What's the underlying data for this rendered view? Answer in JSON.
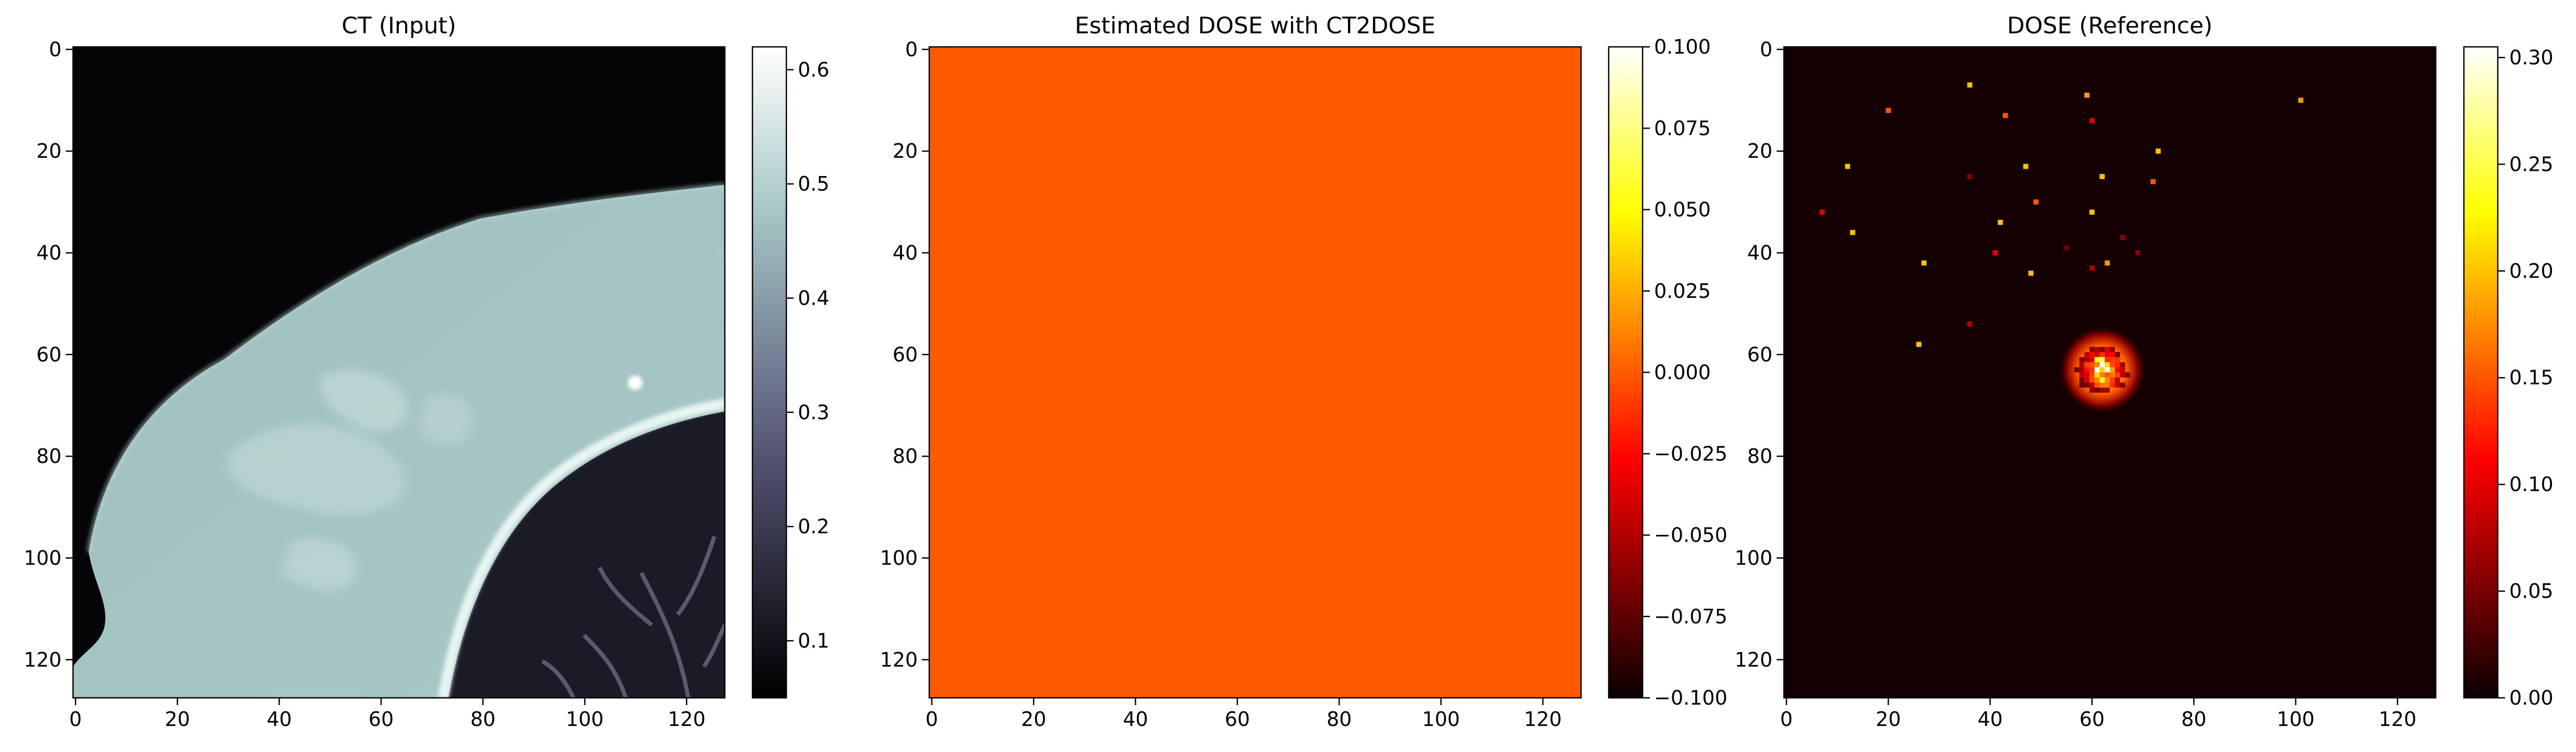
{
  "chart_data": [
    {
      "type": "heatmap",
      "title": "CT (Input)",
      "colormap": "bone",
      "xlim": [
        0,
        127
      ],
      "ylim": [
        127,
        0
      ],
      "x_ticks": [
        "0",
        "20",
        "40",
        "60",
        "80",
        "100",
        "120"
      ],
      "y_ticks": [
        "0",
        "20",
        "40",
        "60",
        "80",
        "100",
        "120"
      ],
      "colorbar": {
        "range": [
          0.05,
          0.62
        ],
        "ticks": [
          "0.1",
          "0.2",
          "0.3",
          "0.4",
          "0.5",
          "0.6"
        ]
      },
      "content": "breast tissue and chest wall with lung region"
    },
    {
      "type": "heatmap",
      "title": "Estimated DOSE with CT2DOSE",
      "colormap": "hot",
      "uniform_value": 0.0,
      "fill_color": "#ff5a00",
      "xlim": [
        0,
        127
      ],
      "ylim": [
        127,
        0
      ],
      "x_ticks": [
        "0",
        "20",
        "40",
        "60",
        "80",
        "100",
        "120"
      ],
      "y_ticks": [
        "0",
        "20",
        "40",
        "60",
        "80",
        "100",
        "120"
      ],
      "colorbar": {
        "range": [
          -0.1,
          0.1
        ],
        "ticks": [
          "0.100",
          "0.075",
          "0.050",
          "0.025",
          "0.000",
          "−0.025",
          "−0.050",
          "−0.075",
          "−0.100"
        ]
      }
    },
    {
      "type": "heatmap",
      "title": "DOSE (Reference)",
      "colormap": "hot",
      "xlim": [
        0,
        127
      ],
      "ylim": [
        127,
        0
      ],
      "x_ticks": [
        "0",
        "20",
        "40",
        "60",
        "80",
        "100",
        "120"
      ],
      "y_ticks": [
        "0",
        "20",
        "40",
        "60",
        "80",
        "100",
        "120"
      ],
      "colorbar": {
        "range": [
          0.0,
          0.305
        ],
        "ticks": [
          "0.00",
          "0.05",
          "0.10",
          "0.15",
          "0.20",
          "0.25",
          "0.30"
        ]
      },
      "hotspot": {
        "x": 62,
        "y": 63,
        "peak": 0.3
      },
      "scatter_points": [
        {
          "x": 36,
          "y": 7,
          "v": 0.2
        },
        {
          "x": 59,
          "y": 9,
          "v": 0.18
        },
        {
          "x": 101,
          "y": 10,
          "v": 0.18
        },
        {
          "x": 20,
          "y": 12,
          "v": 0.15
        },
        {
          "x": 43,
          "y": 13,
          "v": 0.15
        },
        {
          "x": 60,
          "y": 14,
          "v": 0.1
        },
        {
          "x": 73,
          "y": 20,
          "v": 0.2
        },
        {
          "x": 12,
          "y": 23,
          "v": 0.2
        },
        {
          "x": 47,
          "y": 23,
          "v": 0.2
        },
        {
          "x": 36,
          "y": 25,
          "v": 0.06
        },
        {
          "x": 62,
          "y": 25,
          "v": 0.2
        },
        {
          "x": 72,
          "y": 26,
          "v": 0.15
        },
        {
          "x": 49,
          "y": 30,
          "v": 0.15
        },
        {
          "x": 7,
          "y": 32,
          "v": 0.1
        },
        {
          "x": 60,
          "y": 32,
          "v": 0.2
        },
        {
          "x": 42,
          "y": 34,
          "v": 0.2
        },
        {
          "x": 13,
          "y": 36,
          "v": 0.2
        },
        {
          "x": 66,
          "y": 37,
          "v": 0.06
        },
        {
          "x": 55,
          "y": 39,
          "v": 0.05
        },
        {
          "x": 41,
          "y": 40,
          "v": 0.1
        },
        {
          "x": 69,
          "y": 40,
          "v": 0.06
        },
        {
          "x": 27,
          "y": 42,
          "v": 0.2
        },
        {
          "x": 63,
          "y": 42,
          "v": 0.18
        },
        {
          "x": 60,
          "y": 43,
          "v": 0.08
        },
        {
          "x": 48,
          "y": 44,
          "v": 0.2
        },
        {
          "x": 36,
          "y": 54,
          "v": 0.08
        },
        {
          "x": 26,
          "y": 58,
          "v": 0.2
        }
      ]
    }
  ]
}
